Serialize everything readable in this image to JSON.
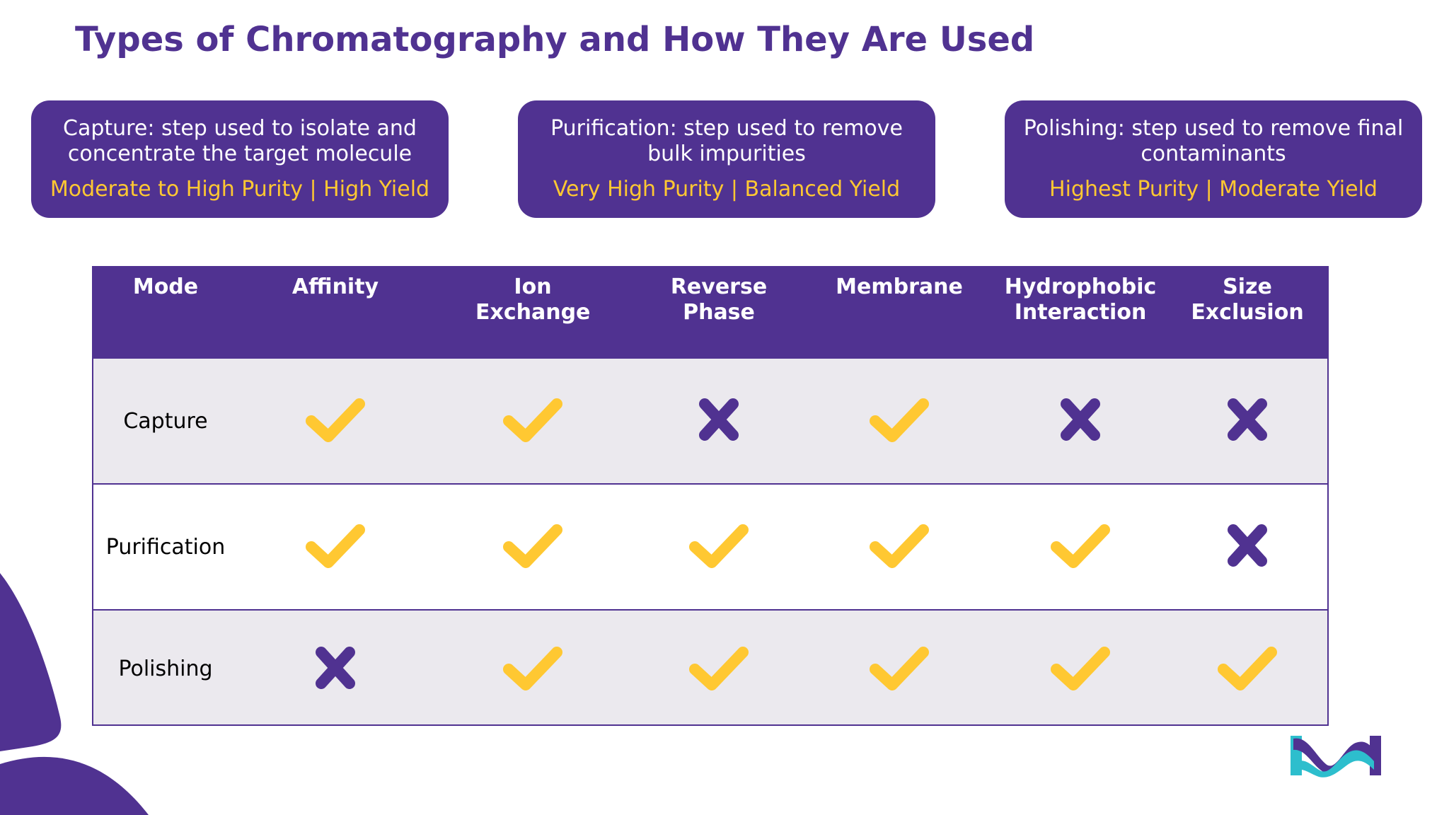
{
  "title": "Types of Chromatography and How They Are Used",
  "cards": [
    {
      "description": "Capture: step used to isolate and concentrate the target molecule",
      "metrics": "Moderate to High Purity | High Yield"
    },
    {
      "description": "Purification: step used to remove bulk impurities",
      "metrics": "Very High Purity | Balanced Yield"
    },
    {
      "description": "Polishing: step used to remove final contaminants",
      "metrics": "Highest Purity | Moderate Yield"
    }
  ],
  "table": {
    "columns": [
      "Mode",
      "Affinity",
      "Ion Exchange",
      "Reverse Phase",
      "Membrane",
      "Hydrophobic Interaction",
      "Size Exclusion"
    ],
    "rows": [
      {
        "mode": "Capture",
        "values": [
          true,
          true,
          false,
          true,
          false,
          false
        ]
      },
      {
        "mode": "Purification",
        "values": [
          true,
          true,
          true,
          true,
          true,
          false
        ]
      },
      {
        "mode": "Polishing",
        "values": [
          false,
          true,
          true,
          true,
          true,
          true
        ]
      }
    ]
  },
  "colors": {
    "brand_purple": "#503291",
    "accent_yellow": "#FFC832",
    "row_shade": "#EBE9EE",
    "logo_teal": "#2DBECD"
  },
  "icons": {
    "supported": "check-icon",
    "not_supported": "cross-icon",
    "logo": "brand-logo"
  }
}
